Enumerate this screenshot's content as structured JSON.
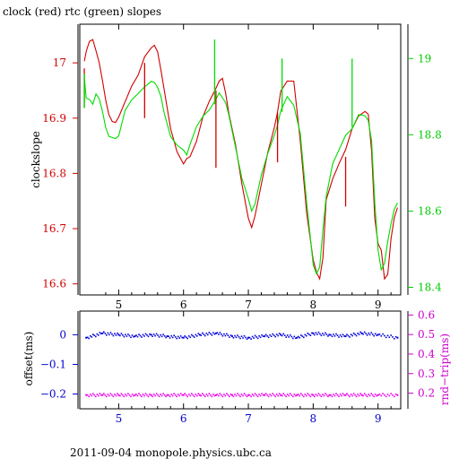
{
  "title": "clock (red) rtc (green) slopes",
  "footer": "2011-09-04 monopole.physics.ubc.ca",
  "colors": {
    "clock": "#d00000",
    "rtc": "#00dd00",
    "offset": "#0000dd",
    "rndtrip": "#ee00ee",
    "left_axis_top": "#d00000",
    "right_axis_top": "#00cc00",
    "left_axis_bottom": "#0000cc",
    "right_axis_bottom": "#cc00cc"
  },
  "chart_data": [
    {
      "type": "line",
      "title": "clock (red) rtc (green) slopes",
      "xlim": [
        4.4,
        9.35
      ],
      "x_ticks": [
        "5",
        "6",
        "7",
        "8",
        "9"
      ],
      "ylabel": "clockslope",
      "ylim": [
        16.58,
        17.07
      ],
      "y_ticks": [
        "16.6",
        "16.7",
        "16.8",
        "16.9",
        "17"
      ],
      "y2lim": [
        18.38,
        19.09
      ],
      "y2_ticks": [
        "18.4",
        "18.6",
        "18.8",
        "19"
      ],
      "series": [
        {
          "name": "clock",
          "axis": "left",
          "x": [
            4.47,
            4.5,
            4.55,
            4.6,
            4.65,
            4.7,
            4.75,
            4.8,
            4.85,
            4.9,
            4.95,
            5.0,
            5.1,
            5.2,
            5.3,
            5.4,
            5.45,
            5.5,
            5.55,
            5.6,
            5.65,
            5.7,
            5.8,
            5.9,
            6.0,
            6.05,
            6.1,
            6.2,
            6.3,
            6.4,
            6.5,
            6.55,
            6.6,
            6.65,
            6.7,
            6.8,
            6.9,
            7.0,
            7.05,
            7.1,
            7.2,
            7.3,
            7.4,
            7.45,
            7.5,
            7.6,
            7.7,
            7.8,
            7.9,
            8.0,
            8.05,
            8.1,
            8.15,
            8.2,
            8.3,
            8.4,
            8.5,
            8.6,
            8.7,
            8.8,
            8.85,
            8.9,
            8.95,
            9.0,
            9.05,
            9.1,
            9.15,
            9.2,
            9.25,
            9.3
          ],
          "y": [
            17.0,
            17.02,
            17.04,
            17.045,
            17.02,
            17.0,
            16.97,
            16.93,
            16.905,
            16.895,
            16.895,
            16.9,
            16.93,
            16.96,
            16.975,
            17.01,
            17.02,
            17.03,
            17.03,
            17.02,
            16.99,
            16.95,
            16.88,
            16.84,
            16.82,
            16.825,
            16.83,
            16.86,
            16.9,
            16.93,
            16.955,
            16.97,
            16.97,
            16.945,
            16.91,
            16.85,
            16.78,
            16.72,
            16.705,
            16.72,
            16.78,
            16.84,
            16.88,
            16.91,
            16.95,
            16.97,
            16.965,
            16.86,
            16.73,
            16.64,
            16.62,
            16.61,
            16.65,
            16.75,
            16.79,
            16.82,
            16.84,
            16.88,
            16.905,
            16.915,
            16.905,
            16.84,
            16.72,
            16.67,
            16.66,
            16.61,
            16.62,
            16.68,
            16.72,
            16.74
          ]
        },
        {
          "name": "rtc",
          "axis": "right",
          "x": [
            4.47,
            4.5,
            4.55,
            4.6,
            4.65,
            4.7,
            4.75,
            4.8,
            4.85,
            4.9,
            4.95,
            5.0,
            5.1,
            5.2,
            5.3,
            5.4,
            5.45,
            5.5,
            5.55,
            5.6,
            5.65,
            5.7,
            5.8,
            5.9,
            6.0,
            6.05,
            6.1,
            6.2,
            6.3,
            6.4,
            6.5,
            6.55,
            6.6,
            6.65,
            6.7,
            6.8,
            6.9,
            7.0,
            7.05,
            7.1,
            7.2,
            7.3,
            7.4,
            7.45,
            7.5,
            7.6,
            7.7,
            7.8,
            7.9,
            8.0,
            8.05,
            8.1,
            8.15,
            8.2,
            8.3,
            8.4,
            8.5,
            8.6,
            8.7,
            8.8,
            8.85,
            8.9,
            8.95,
            9.0,
            9.05,
            9.1,
            9.15,
            9.2,
            9.25,
            9.3
          ],
          "y": [
            18.95,
            18.9,
            18.89,
            18.88,
            18.91,
            18.89,
            18.86,
            18.82,
            18.8,
            18.79,
            18.79,
            18.8,
            18.86,
            18.89,
            18.91,
            18.93,
            18.93,
            18.94,
            18.94,
            18.92,
            18.9,
            18.86,
            18.8,
            18.77,
            18.76,
            18.75,
            18.77,
            18.82,
            18.85,
            18.87,
            18.89,
            18.91,
            18.9,
            18.88,
            18.85,
            18.77,
            18.69,
            18.63,
            18.6,
            18.62,
            18.69,
            18.75,
            18.8,
            18.83,
            18.86,
            18.9,
            18.88,
            18.8,
            18.62,
            18.46,
            18.44,
            18.45,
            18.55,
            18.64,
            18.72,
            18.76,
            18.8,
            18.82,
            18.85,
            18.85,
            18.84,
            18.78,
            18.62,
            18.5,
            18.45,
            18.46,
            18.52,
            18.57,
            18.6,
            18.62
          ]
        }
      ],
      "spikes": [
        {
          "x": 4.47,
          "axis": "left",
          "y_from": 16.99,
          "y_to": 16.92
        },
        {
          "x": 5.4,
          "axis": "left",
          "y_from": 17.0,
          "y_to": 16.9
        },
        {
          "x": 6.5,
          "axis": "left",
          "y_from": 16.95,
          "y_to": 16.81
        },
        {
          "x": 7.45,
          "axis": "left",
          "y_from": 16.91,
          "y_to": 16.82
        },
        {
          "x": 8.5,
          "axis": "left",
          "y_from": 16.83,
          "y_to": 16.74
        },
        {
          "x": 4.47,
          "axis": "right",
          "y_from": 18.96,
          "y_to": 18.87
        },
        {
          "x": 6.48,
          "axis": "right",
          "y_from": 18.88,
          "y_to": 19.05
        },
        {
          "x": 7.52,
          "axis": "right",
          "y_from": 18.86,
          "y_to": 19.0
        },
        {
          "x": 8.6,
          "axis": "right",
          "y_from": 18.82,
          "y_to": 19.0
        }
      ]
    },
    {
      "type": "scatter",
      "xlim": [
        4.4,
        9.35
      ],
      "x_ticks": [
        "5",
        "6",
        "7",
        "8",
        "9"
      ],
      "ylabel": "offset(ms)",
      "ylim": [
        -0.25,
        0.08
      ],
      "y_ticks": [
        "0",
        "−0.1",
        "−0.2"
      ],
      "y2label": "rnd−trip(ms)",
      "y2lim": [
        0.12,
        0.62
      ],
      "y2_ticks": [
        "0.2",
        "0.3",
        "0.4",
        "0.5",
        "0.6"
      ],
      "series": [
        {
          "name": "offset",
          "axis": "left",
          "x": [
            4.5,
            4.75,
            5.0,
            5.25,
            5.5,
            5.75,
            6.0,
            6.25,
            6.5,
            6.75,
            7.0,
            7.25,
            7.5,
            7.75,
            8.0,
            8.25,
            8.5,
            8.75,
            9.0,
            9.3
          ],
          "y": [
            -0.01,
            0.005,
            0.0,
            -0.005,
            0.0,
            -0.005,
            -0.01,
            0.0,
            0.005,
            -0.005,
            -0.01,
            -0.005,
            0.0,
            -0.01,
            0.005,
            0.0,
            -0.005,
            0.005,
            0.0,
            -0.01
          ]
        },
        {
          "name": "rndtrip",
          "axis": "right",
          "x": [
            4.5,
            4.75,
            5.0,
            5.25,
            5.5,
            5.75,
            6.0,
            6.25,
            6.5,
            6.75,
            7.0,
            7.25,
            7.5,
            7.75,
            8.0,
            8.25,
            8.5,
            8.75,
            9.0,
            9.3
          ],
          "y": [
            0.19,
            0.19,
            0.19,
            0.19,
            0.19,
            0.19,
            0.19,
            0.19,
            0.19,
            0.19,
            0.19,
            0.19,
            0.19,
            0.19,
            0.19,
            0.19,
            0.19,
            0.19,
            0.19,
            0.19
          ]
        }
      ]
    }
  ]
}
